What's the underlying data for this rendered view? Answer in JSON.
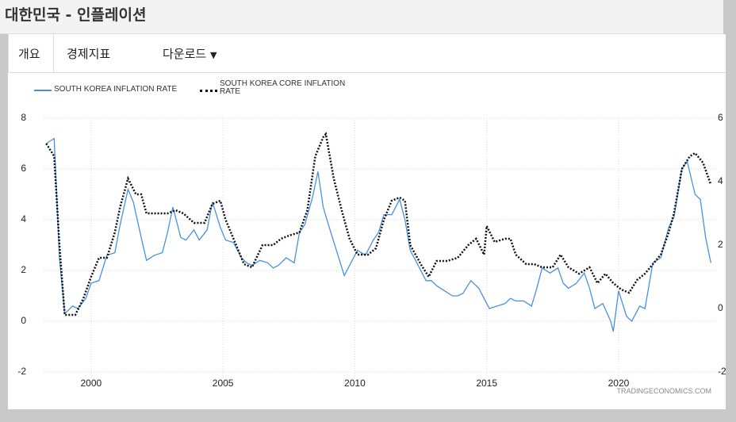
{
  "header": {
    "title": "대한민국 - 인플레이션"
  },
  "tabs": [
    "개요",
    "경제지표",
    "다운로드"
  ],
  "watermark": "TRADINGECONOMICS.COM",
  "chart_data": {
    "type": "line",
    "xlim": [
      1998.2,
      2023.7
    ],
    "xticks": [
      2000,
      2005,
      2010,
      2015,
      2020
    ],
    "ylim": [
      -2,
      8
    ],
    "yticks": [
      -2,
      0,
      2,
      4,
      6,
      8
    ],
    "y2lim": [
      -2,
      6
    ],
    "y2ticks": [
      -2,
      0,
      2,
      4,
      6
    ],
    "grid": true,
    "series": [
      {
        "name": "SOUTH KOREA INFLATION RATE",
        "color": "#4a90e2",
        "line_style": "solid",
        "x": [
          1998.3,
          1998.6,
          1998.8,
          1999.0,
          1999.3,
          1999.5,
          1999.8,
          2000.0,
          2000.3,
          2000.6,
          2000.9,
          2001.1,
          2001.4,
          2001.6,
          2001.9,
          2002.1,
          2002.4,
          2002.7,
          2002.9,
          2003.1,
          2003.4,
          2003.6,
          2003.9,
          2004.1,
          2004.4,
          2004.6,
          2004.9,
          2005.1,
          2005.4,
          2005.7,
          2005.9,
          2006.1,
          2006.4,
          2006.7,
          2006.9,
          2007.1,
          2007.4,
          2007.7,
          2007.9,
          2008.1,
          2008.4,
          2008.6,
          2008.8,
          2009.0,
          2009.3,
          2009.6,
          2009.9,
          2010.1,
          2010.4,
          2010.7,
          2010.9,
          2011.1,
          2011.4,
          2011.7,
          2011.9,
          2012.1,
          2012.4,
          2012.7,
          2012.9,
          2013.1,
          2013.4,
          2013.7,
          2013.9,
          2014.1,
          2014.4,
          2014.7,
          2014.9,
          2015.1,
          2015.4,
          2015.7,
          2015.9,
          2016.1,
          2016.4,
          2016.7,
          2016.9,
          2017.1,
          2017.4,
          2017.7,
          2017.9,
          2018.1,
          2018.4,
          2018.7,
          2018.9,
          2019.1,
          2019.4,
          2019.7,
          2019.8,
          2020.0,
          2020.3,
          2020.5,
          2020.8,
          2021.0,
          2021.3,
          2021.6,
          2021.9,
          2022.1,
          2022.4,
          2022.6,
          2022.9,
          2023.1,
          2023.3,
          2023.5
        ],
        "values": [
          7.0,
          7.2,
          2.5,
          0.3,
          0.6,
          0.5,
          0.9,
          1.5,
          1.6,
          2.6,
          2.7,
          3.8,
          5.2,
          4.7,
          3.3,
          2.4,
          2.6,
          2.7,
          3.5,
          4.5,
          3.3,
          3.2,
          3.6,
          3.2,
          3.6,
          4.7,
          3.7,
          3.2,
          3.1,
          2.5,
          2.3,
          2.2,
          2.4,
          2.3,
          2.1,
          2.2,
          2.5,
          2.3,
          3.5,
          3.8,
          4.9,
          5.9,
          4.5,
          3.8,
          2.8,
          1.8,
          2.4,
          2.8,
          2.6,
          3.2,
          3.5,
          4.2,
          4.2,
          4.8,
          4.0,
          2.8,
          2.2,
          1.6,
          1.6,
          1.4,
          1.2,
          1.0,
          1.0,
          1.1,
          1.6,
          1.3,
          0.9,
          0.5,
          0.6,
          0.7,
          0.9,
          0.8,
          0.8,
          0.6,
          1.3,
          2.1,
          1.9,
          2.1,
          1.5,
          1.3,
          1.5,
          1.9,
          1.3,
          0.5,
          0.7,
          0.0,
          -0.4,
          1.2,
          0.2,
          0.0,
          0.6,
          0.5,
          2.3,
          2.5,
          3.7,
          4.1,
          6.0,
          6.3,
          5.0,
          4.8,
          3.3,
          2.3
        ]
      },
      {
        "name": "SOUTH KOREA CORE INFLATION RATE",
        "color": "#111111",
        "line_style": "dotted",
        "axis": "y2",
        "x": [
          1998.3,
          1998.6,
          1998.8,
          1999.0,
          1999.4,
          1999.7,
          2000.0,
          2000.3,
          2000.6,
          2000.9,
          2001.1,
          2001.4,
          2001.7,
          2001.9,
          2002.1,
          2002.5,
          2002.9,
          2003.2,
          2003.5,
          2003.9,
          2004.3,
          2004.6,
          2004.9,
          2005.1,
          2005.4,
          2005.8,
          2006.1,
          2006.5,
          2006.9,
          2007.2,
          2007.5,
          2007.9,
          2008.2,
          2008.5,
          2008.8,
          2008.9,
          2009.2,
          2009.5,
          2009.8,
          2010.1,
          2010.5,
          2010.8,
          2011.1,
          2011.4,
          2011.7,
          2011.9,
          2012.1,
          2012.5,
          2012.8,
          2013.1,
          2013.5,
          2013.9,
          2014.3,
          2014.6,
          2014.9,
          2015.0,
          2015.3,
          2015.7,
          2015.9,
          2016.1,
          2016.5,
          2016.8,
          2017.1,
          2017.5,
          2017.8,
          2018.1,
          2018.5,
          2018.9,
          2019.2,
          2019.5,
          2019.8,
          2020.1,
          2020.4,
          2020.7,
          2021.0,
          2021.3,
          2021.6,
          2021.9,
          2022.1,
          2022.4,
          2022.7,
          2022.9,
          2023.2,
          2023.5
        ],
        "values": [
          5.2,
          4.8,
          2.0,
          -0.2,
          -0.2,
          0.3,
          1.0,
          1.6,
          1.6,
          2.4,
          3.2,
          4.1,
          3.6,
          3.6,
          3.0,
          3.0,
          3.0,
          3.1,
          3.0,
          2.7,
          2.7,
          3.3,
          3.4,
          2.8,
          2.2,
          1.4,
          1.3,
          2.0,
          2.0,
          2.2,
          2.3,
          2.4,
          3.1,
          4.8,
          5.4,
          5.5,
          4.1,
          3.1,
          2.2,
          1.7,
          1.7,
          1.9,
          2.8,
          3.4,
          3.5,
          3.4,
          2.0,
          1.4,
          1.0,
          1.5,
          1.5,
          1.6,
          2.0,
          2.2,
          1.7,
          2.6,
          2.1,
          2.2,
          2.2,
          1.7,
          1.4,
          1.4,
          1.3,
          1.3,
          1.7,
          1.3,
          1.1,
          1.3,
          0.8,
          1.1,
          0.8,
          0.6,
          0.5,
          0.9,
          1.1,
          1.4,
          1.7,
          2.4,
          3.0,
          4.4,
          4.8,
          4.9,
          4.6,
          3.9
        ]
      }
    ]
  }
}
